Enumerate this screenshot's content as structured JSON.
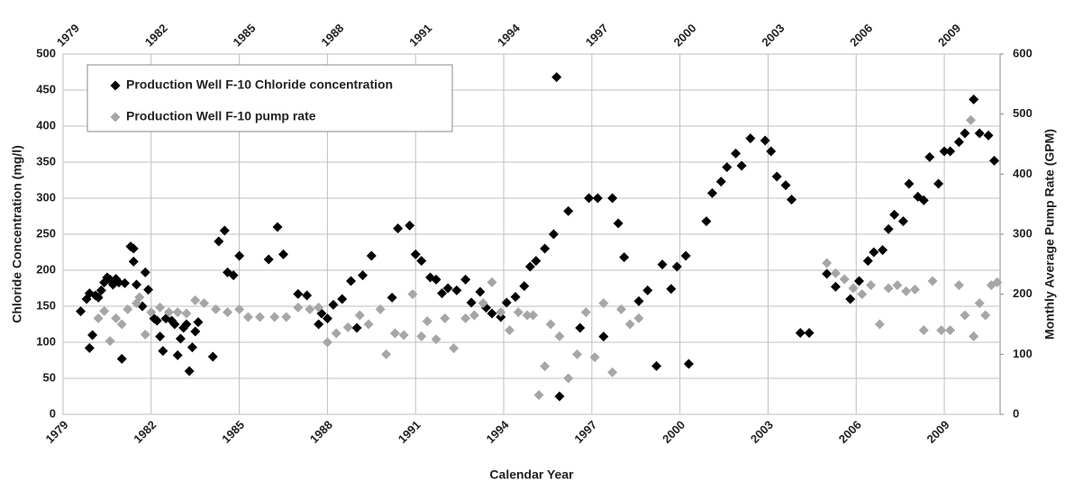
{
  "chart_data": {
    "type": "scatter",
    "xlabel": "Calendar Year",
    "ylabel": "Chloride Concentration (mg/l)",
    "y2label": "Monthly Average Pump Rate (GPM)",
    "xlim": [
      1979,
      2010.9
    ],
    "xticks": [
      1979,
      1982,
      1985,
      1988,
      1991,
      1994,
      1997,
      2000,
      2003,
      2006,
      2009
    ],
    "ylim": [
      0,
      500
    ],
    "yticks": [
      0,
      50,
      100,
      150,
      200,
      250,
      300,
      350,
      400,
      450,
      500
    ],
    "y2lim": [
      0,
      600
    ],
    "y2ticks": [
      0,
      100,
      200,
      300,
      400,
      500,
      600
    ],
    "grid": true,
    "legend": "upper left",
    "series": [
      {
        "name": "Production Well F-10 Chloride concentration",
        "color": "#000000",
        "x": [
          1979.6,
          1979.8,
          1979.9,
          1979.9,
          1980.0,
          1980.1,
          1980.2,
          1980.3,
          1980.4,
          1980.5,
          1980.6,
          1980.7,
          1980.8,
          1980.9,
          1981.0,
          1981.1,
          1981.3,
          1981.4,
          1981.4,
          1981.5,
          1981.7,
          1981.8,
          1981.9,
          1982.1,
          1982.2,
          1982.3,
          1982.4,
          1982.5,
          1982.7,
          1982.8,
          1982.9,
          1983.0,
          1983.1,
          1983.2,
          1983.3,
          1983.4,
          1983.5,
          1983.6,
          1984.1,
          1984.3,
          1984.5,
          1984.6,
          1984.8,
          1985.0,
          1986.0,
          1986.3,
          1986.5,
          1987.0,
          1987.3,
          1987.7,
          1987.8,
          1988.0,
          1988.2,
          1988.5,
          1988.8,
          1989.0,
          1989.2,
          1989.5,
          1990.2,
          1990.4,
          1990.8,
          1991.0,
          1991.2,
          1991.5,
          1991.7,
          1991.9,
          1992.1,
          1992.4,
          1992.7,
          1992.9,
          1993.2,
          1993.4,
          1993.6,
          1993.9,
          1994.1,
          1994.4,
          1994.7,
          1994.9,
          1995.1,
          1995.4,
          1995.7,
          1995.8,
          1995.9,
          1996.2,
          1996.6,
          1996.9,
          1997.2,
          1997.4,
          1997.7,
          1997.9,
          1998.1,
          1998.6,
          1998.9,
          1999.2,
          1999.4,
          1999.7,
          1999.9,
          2000.2,
          2000.3,
          2000.9,
          2001.1,
          2001.4,
          2001.6,
          2001.9,
          2002.1,
          2002.4,
          2002.9,
          2003.1,
          2003.3,
          2003.6,
          2003.8,
          2004.1,
          2004.4,
          2005.0,
          2005.3,
          2005.8,
          2006.1,
          2006.4,
          2006.6,
          2006.9,
          2007.1,
          2007.3,
          2007.6,
          2007.8,
          2008.1,
          2008.3,
          2008.5,
          2008.8,
          2009.0,
          2009.2,
          2009.5,
          2009.7,
          2010.0,
          2010.2,
          2010.5,
          2010.7
        ],
        "values": [
          143,
          160,
          168,
          92,
          110,
          165,
          162,
          172,
          183,
          190,
          187,
          180,
          188,
          183,
          77,
          182,
          233,
          230,
          212,
          180,
          150,
          197,
          173,
          133,
          130,
          108,
          88,
          133,
          130,
          125,
          82,
          105,
          120,
          125,
          60,
          93,
          115,
          128,
          80,
          240,
          255,
          197,
          193,
          220,
          215,
          260,
          222,
          167,
          165,
          125,
          140,
          133,
          152,
          160,
          185,
          120,
          193,
          220,
          162,
          258,
          262,
          222,
          213,
          190,
          187,
          168,
          175,
          172,
          187,
          155,
          170,
          148,
          140,
          135,
          155,
          163,
          178,
          205,
          213,
          230,
          250,
          468,
          25,
          282,
          120,
          300,
          300,
          108,
          300,
          265,
          218,
          157,
          172,
          67,
          208,
          174,
          205,
          220,
          70,
          268,
          307,
          323,
          343,
          362,
          345,
          383,
          380,
          365,
          330,
          318,
          298,
          113,
          113,
          195,
          177,
          160,
          185,
          213,
          225,
          228,
          257,
          277,
          268,
          320,
          302,
          297,
          357,
          320,
          365,
          365,
          378,
          390,
          437,
          390,
          387,
          352
        ]
      },
      {
        "name": "Production Well F-10 pump rate",
        "color": "#a6a6a6",
        "axis": "y2",
        "x": [
          1980.2,
          1980.4,
          1980.6,
          1980.8,
          1981.0,
          1981.2,
          1981.5,
          1981.6,
          1981.8,
          1982.0,
          1982.3,
          1982.6,
          1982.9,
          1983.2,
          1983.5,
          1983.8,
          1984.2,
          1984.6,
          1985.0,
          1985.3,
          1985.7,
          1986.2,
          1986.6,
          1987.0,
          1987.4,
          1987.7,
          1988.0,
          1988.3,
          1988.7,
          1989.1,
          1989.4,
          1989.8,
          1990.0,
          1990.3,
          1990.6,
          1990.9,
          1991.2,
          1991.4,
          1991.7,
          1992.0,
          1992.3,
          1992.7,
          1993.0,
          1993.3,
          1993.6,
          1993.9,
          1994.2,
          1994.5,
          1994.8,
          1995.0,
          1995.2,
          1995.4,
          1995.6,
          1995.9,
          1996.2,
          1996.5,
          1996.8,
          1997.1,
          1997.4,
          1997.7,
          1998.0,
          1998.3,
          1998.6,
          2005.0,
          2005.3,
          2005.6,
          2005.9,
          2006.2,
          2006.5,
          2006.8,
          2007.1,
          2007.4,
          2007.7,
          2008.0,
          2008.3,
          2008.6,
          2008.9,
          2009.2,
          2009.5,
          2009.7,
          2009.9,
          2010.0,
          2010.2,
          2010.4,
          2010.6,
          2010.8
        ],
        "values": [
          160,
          172,
          122,
          160,
          150,
          175,
          185,
          195,
          133,
          170,
          178,
          170,
          170,
          168,
          190,
          185,
          175,
          170,
          175,
          162,
          162,
          162,
          162,
          178,
          175,
          178,
          120,
          135,
          145,
          165,
          150,
          175,
          100,
          135,
          132,
          200,
          130,
          155,
          125,
          160,
          110,
          160,
          165,
          185,
          220,
          170,
          140,
          170,
          165,
          165,
          32,
          80,
          150,
          130,
          60,
          100,
          170,
          95,
          185,
          70,
          175,
          150,
          160,
          252,
          235,
          225,
          210,
          200,
          215,
          150,
          210,
          215,
          205,
          208,
          140,
          222,
          140,
          140,
          215,
          165,
          490,
          130,
          185,
          165,
          215,
          220
        ]
      }
    ]
  }
}
